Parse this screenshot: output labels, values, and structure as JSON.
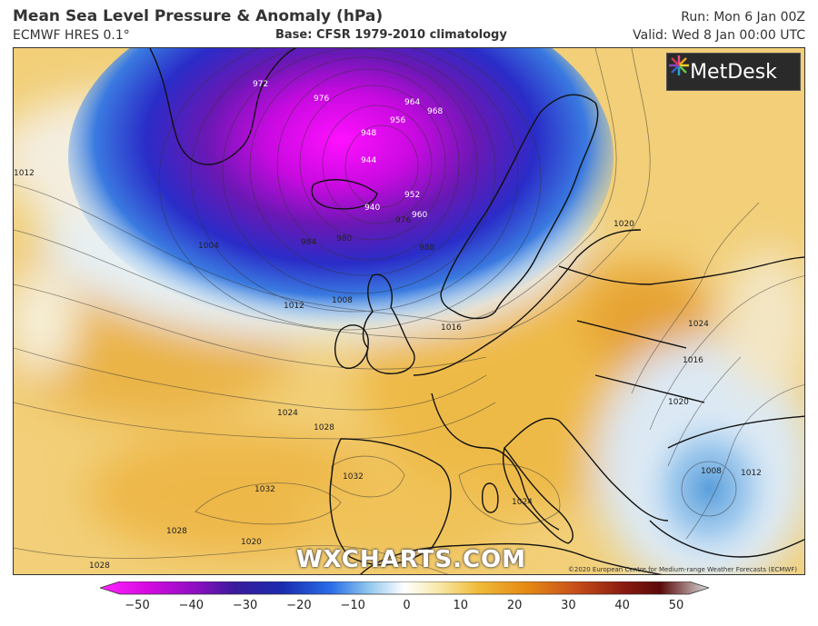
{
  "header": {
    "title": "Mean Sea Level Pressure & Anomaly (hPa)",
    "model": "ECMWF HRES 0.1°",
    "base": "Base: CFSR 1979-2010 climatology",
    "run": "Run: Mon 6 Jan 00Z",
    "valid": "Valid: Wed 8 Jan 00:00 UTC"
  },
  "logo": {
    "text": "MetDesk",
    "icon": "starburst-icon"
  },
  "watermark": "WXCHARTS.COM",
  "copyright": "©2020 European Centre for Medium-range Weather Forecasts (ECMWF)",
  "isobar_labels": [
    "976",
    "964",
    "968",
    "956",
    "948",
    "944",
    "940",
    "952",
    "960",
    "972",
    "976",
    "980",
    "984",
    "988",
    "1004",
    "1008",
    "1012",
    "1016",
    "1020",
    "1024",
    "1028",
    "1032",
    "1032",
    "1028",
    "1028",
    "1024",
    "1016",
    "1020",
    "1024",
    "1008",
    "1012",
    "1012",
    "1020"
  ],
  "colorbar": {
    "min": -50,
    "max": 50,
    "ticks": [
      "−50",
      "−40",
      "−30",
      "−20",
      "−10",
      "0",
      "10",
      "20",
      "30",
      "40",
      "50"
    ],
    "colors": [
      "#ff22ff",
      "#b400c8",
      "#5a1aa0",
      "#1a2cb0",
      "#2a6ee8",
      "#8ec6ee",
      "#ffffff",
      "#f7e6a2",
      "#f0bc3a",
      "#e68a14",
      "#b43c0a",
      "#6a0a0a",
      "#cfcfcf"
    ]
  }
}
